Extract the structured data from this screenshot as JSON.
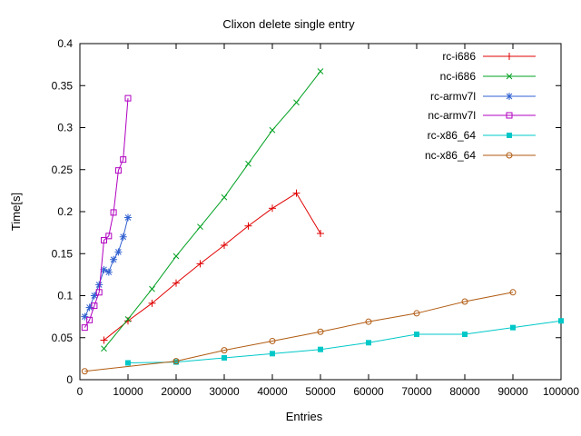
{
  "chart_data": {
    "type": "line",
    "title": "Clixon delete single entry",
    "xlabel": "Entries",
    "ylabel": "Time[s]",
    "xlim": [
      0,
      100000
    ],
    "ylim": [
      0,
      0.4
    ],
    "xticks": [
      0,
      10000,
      20000,
      30000,
      40000,
      50000,
      60000,
      70000,
      80000,
      90000,
      100000
    ],
    "yticks": [
      0,
      0.05,
      0.1,
      0.15,
      0.2,
      0.25,
      0.3,
      0.35,
      0.4
    ],
    "grid": false,
    "legend_position": "top-right-inside",
    "background_color": "#ffffff",
    "text_color": "#000000",
    "series": [
      {
        "name": "rc-i686",
        "color": "#e00000",
        "marker": "plus",
        "x": [
          5000,
          10000,
          15000,
          20000,
          25000,
          30000,
          35000,
          40000,
          45000,
          50000
        ],
        "y": [
          0.047,
          0.07,
          0.091,
          0.115,
          0.138,
          0.16,
          0.183,
          0.204,
          0.222,
          0.174
        ]
      },
      {
        "name": "nc-i686",
        "color": "#00a020",
        "marker": "cross",
        "x": [
          5000,
          10000,
          15000,
          20000,
          25000,
          30000,
          35000,
          40000,
          45000,
          50000
        ],
        "y": [
          0.037,
          0.072,
          0.108,
          0.147,
          0.182,
          0.217,
          0.257,
          0.297,
          0.33,
          0.367
        ]
      },
      {
        "name": "rc-armv7l",
        "color": "#3060d0",
        "marker": "star",
        "x": [
          1000,
          2000,
          3000,
          4000,
          5000,
          6000,
          7000,
          8000,
          9000,
          10000
        ],
        "y": [
          0.075,
          0.086,
          0.1,
          0.113,
          0.131,
          0.128,
          0.143,
          0.152,
          0.17,
          0.193
        ]
      },
      {
        "name": "nc-armv7l",
        "color": "#b000c0",
        "marker": "square-open",
        "x": [
          1000,
          2000,
          3000,
          4000,
          5000,
          6000,
          7000,
          8000,
          9000,
          10000
        ],
        "y": [
          0.062,
          0.071,
          0.088,
          0.104,
          0.166,
          0.171,
          0.199,
          0.249,
          0.262,
          0.335
        ]
      },
      {
        "name": "rc-x86_64",
        "color": "#00c8c8",
        "marker": "square-filled",
        "x": [
          10000,
          20000,
          30000,
          40000,
          50000,
          60000,
          70000,
          80000,
          90000,
          100000
        ],
        "y": [
          0.02,
          0.021,
          0.026,
          0.031,
          0.036,
          0.044,
          0.054,
          0.054,
          0.062,
          0.07
        ]
      },
      {
        "name": "nc-x86_64",
        "color": "#b05a10",
        "marker": "circle-open",
        "x": [
          1000,
          20000,
          30000,
          40000,
          50000,
          60000,
          70000,
          80000,
          90000
        ],
        "y": [
          0.01,
          0.022,
          0.035,
          0.046,
          0.057,
          0.069,
          0.079,
          0.093,
          0.104
        ]
      }
    ]
  }
}
